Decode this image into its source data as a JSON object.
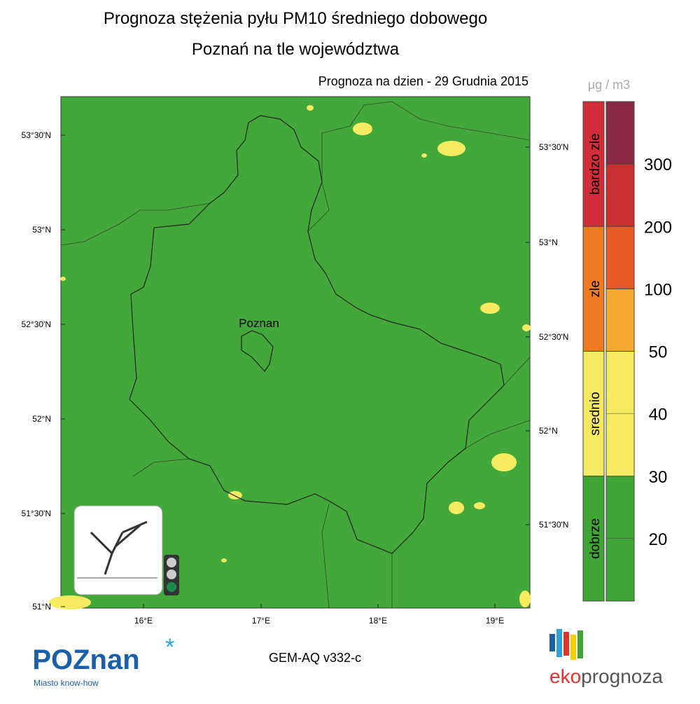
{
  "header": {
    "title": "Prognoza stężenia pyłu PM10 średniego dobowego",
    "subtitle": "Poznań na tle województwa",
    "date_line": "Prognoza na dzien -  29 Grudnia 2015"
  },
  "map": {
    "city_label": "Poznan",
    "lat_left": [
      "53°30'N",
      "53°N",
      "52°30'N",
      "52°N",
      "51°30'N",
      "51°N"
    ],
    "lat_right": [
      "53°30'N",
      "53°N",
      "52°30'N",
      "52°N",
      "51°30'N"
    ],
    "lon_bottom": [
      "16°E",
      "17°E",
      "18°E",
      "19°E"
    ]
  },
  "legend": {
    "unit": "μg / m3",
    "categories": [
      {
        "label": "bardzo zle",
        "color": "#d22e3a"
      },
      {
        "label": "zle",
        "color": "#ef7c22"
      },
      {
        "label": "srednio",
        "color": "#f5ea60"
      },
      {
        "label": "dobrze",
        "color": "#3fa535"
      }
    ],
    "bins": [
      "#8b2a45",
      "#c8312f",
      "#e85a24",
      "#f5a930",
      "#f5ea60",
      "#f5ea60",
      "#3fa535",
      "#3fa535"
    ],
    "levels": [
      300,
      200,
      100,
      50,
      40,
      30,
      20
    ]
  },
  "footer": {
    "logo": "POZnan",
    "tagline": "Miasto know-how",
    "model": "GEM-AQ v332-c",
    "brand_a": "eko",
    "brand_b": "prognoza"
  }
}
